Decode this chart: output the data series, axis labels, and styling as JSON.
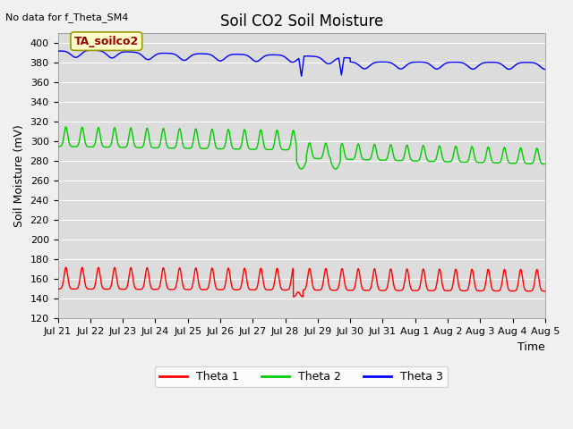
{
  "title": "Soil CO2 Soil Moisture",
  "ylabel": "Soil Moisture (mV)",
  "xlabel": "Time",
  "no_data_text": "No data for f_Theta_SM4",
  "annotation_text": "TA_soilco2",
  "ylim": [
    120,
    410
  ],
  "yticks": [
    120,
    140,
    160,
    180,
    200,
    220,
    240,
    260,
    280,
    300,
    320,
    340,
    360,
    380,
    400
  ],
  "xtick_labels": [
    "Jul 21",
    "Jul 22",
    "Jul 23",
    "Jul 24",
    "Jul 25",
    "Jul 26",
    "Jul 27",
    "Jul 28",
    "Jul 29",
    "Jul 30",
    "Jul 31",
    "Aug 1",
    "Aug 2",
    "Aug 3",
    "Aug 4",
    "Aug 5"
  ],
  "bg_color": "#dcdcdc",
  "grid_color": "#ffffff",
  "theta1_color": "#ff0000",
  "theta2_color": "#00cc00",
  "theta3_color": "#0000ff",
  "legend_labels": [
    "Theta 1",
    "Theta 2",
    "Theta 3"
  ],
  "title_fontsize": 12,
  "axis_label_fontsize": 9,
  "tick_fontsize": 8,
  "annotation_color": "#990000",
  "annotation_bg": "#ffffcc",
  "annotation_edge": "#999900"
}
